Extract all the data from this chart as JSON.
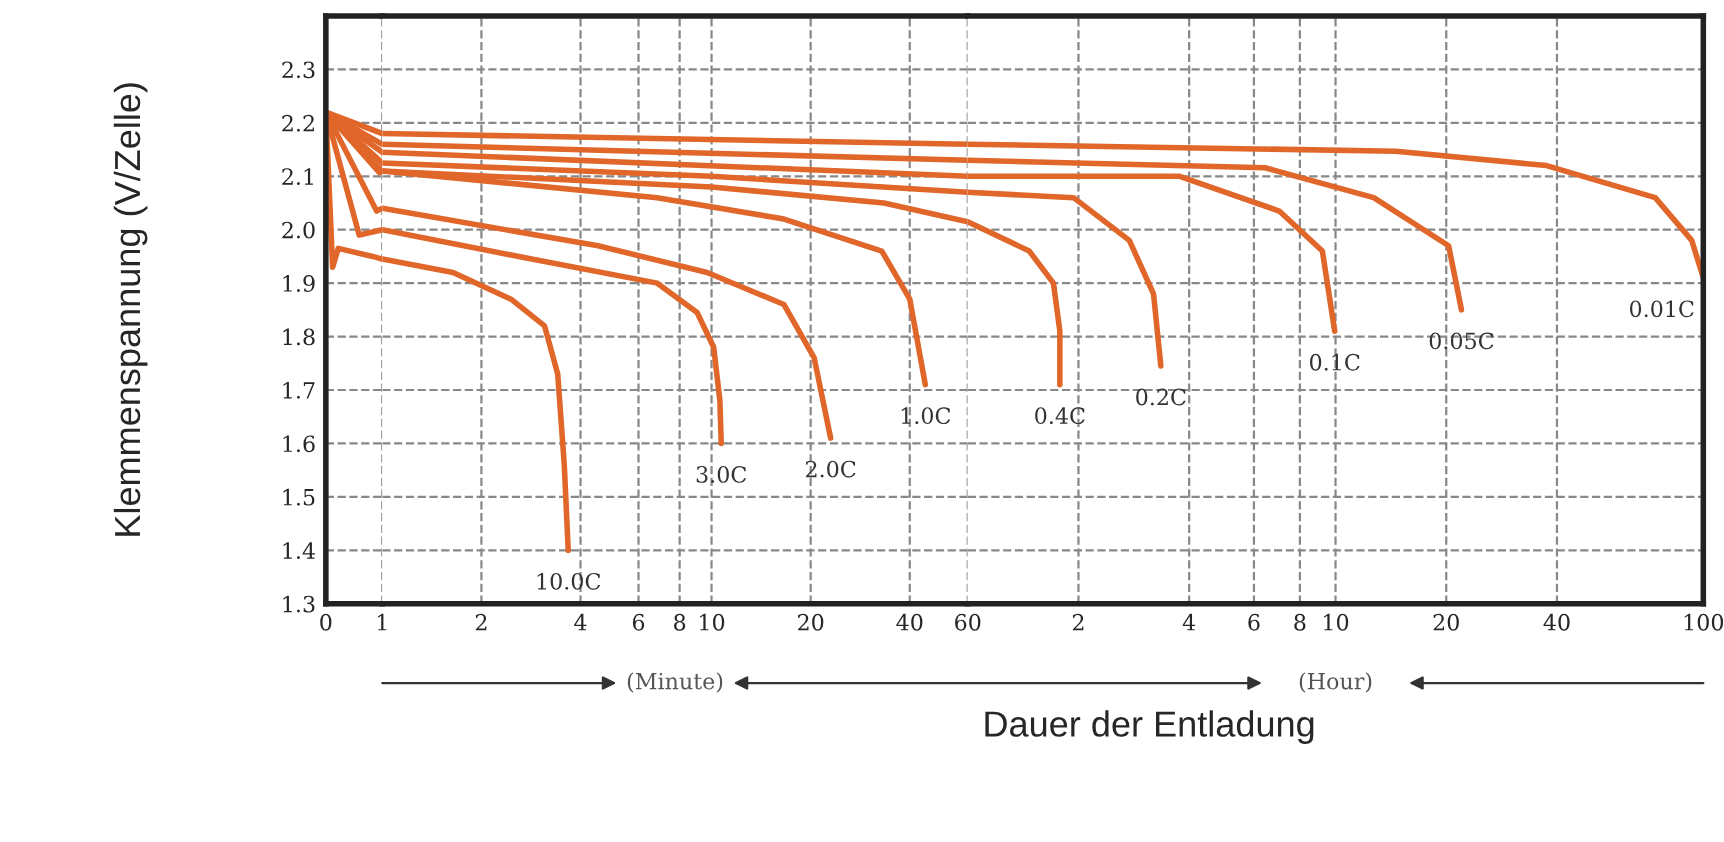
{
  "chart_data": [
    {
      "type": "line",
      "ylabel": "Klemmenspannung (V/Zelle)",
      "xlim": [
        0,
        1
      ],
      "ylim": [
        1.3,
        2.4
      ],
      "xticks": [
        0,
        1
      ],
      "yticks": [
        1.3,
        1.4,
        1.5,
        1.6,
        1.7,
        1.8,
        1.9,
        {
          "value": 2.0,
          "label": "2.0"
        },
        2.1,
        2.2,
        2.3
      ],
      "grid": true,
      "line_style": "solid",
      "series": [
        {
          "color": "#e0662a",
          "x": [
            0,
            0.12,
            0.22,
            0.83,
            1
          ],
          "values": [
            2.22,
            1.93,
            1.965,
            1.95,
            1.945
          ]
        },
        {
          "color": "#e0662a",
          "x": [
            0,
            0.59,
            1
          ],
          "values": [
            2.22,
            1.99,
            2.0
          ]
        },
        {
          "color": "#e0662a",
          "x": [
            0,
            0.9,
            1
          ],
          "values": [
            2.22,
            2.035,
            2.04
          ]
        },
        {
          "color": "#e0662a",
          "x": [
            0,
            0.95,
            1
          ],
          "values": [
            2.22,
            2.107,
            2.11
          ]
        },
        {
          "color": "#e0662a",
          "x": [
            0,
            1
          ],
          "values": [
            2.22,
            2.11
          ]
        },
        {
          "color": "#e0662a",
          "x": [
            0,
            1
          ],
          "values": [
            2.22,
            2.125
          ]
        },
        {
          "color": "#e0662a",
          "x": [
            0,
            1
          ],
          "values": [
            2.22,
            2.145
          ]
        },
        {
          "color": "#e0662a",
          "x": [
            0,
            1
          ],
          "values": [
            2.22,
            2.16
          ]
        },
        {
          "color": "#e0662a",
          "x": [
            0,
            1
          ],
          "values": [
            2.22,
            2.18
          ]
        }
      ]
    },
    {
      "type": "line",
      "log": "x",
      "xlim": [
        1,
        60
      ],
      "ylim": [
        1.3,
        2.4
      ],
      "xticks": [
        2,
        4,
        6,
        8,
        10,
        20,
        40,
        60
      ],
      "yticks": [
        1.3,
        1.4,
        1.5,
        1.6,
        1.7,
        1.8,
        1.9,
        2.0,
        2.1,
        2.2,
        2.3
      ],
      "tick_labels": "x",
      "grid": true,
      "line_style": "solid",
      "annotations": [
        "(Minute)"
      ],
      "series": [
        {
          "name": "10.0C",
          "color": "#e0662a",
          "x": [
            1,
            1.64,
            2.46,
            3.11,
            3.41,
            3.57,
            3.67
          ],
          "values": [
            1.945,
            1.92,
            1.87,
            1.82,
            1.73,
            1.56,
            1.4
          ]
        },
        {
          "name": "3.0C",
          "color": "#e0662a",
          "x": [
            1,
            2.79,
            6.84,
            9.04,
            10.15,
            10.6,
            10.7
          ],
          "values": [
            2.0,
            1.946,
            1.9,
            1.845,
            1.78,
            1.68,
            1.6
          ]
        },
        {
          "name": "2.0C",
          "color": "#e0662a",
          "x": [
            1,
            4.52,
            9.7,
            16.6,
            20.5,
            23.0
          ],
          "values": [
            2.04,
            1.97,
            1.92,
            1.86,
            1.76,
            1.61
          ]
        },
        {
          "name": "1.0C",
          "color": "#e0662a",
          "x": [
            1,
            6.84,
            16.6,
            32.9,
            40,
            44.6
          ],
          "values": [
            2.11,
            2.06,
            2.02,
            1.96,
            1.87,
            1.71
          ]
        },
        {
          "color": "#e0662a",
          "x": [
            1,
            10,
            33.4,
            60
          ],
          "values": [
            2.11,
            2.08,
            2.05,
            2.015
          ]
        },
        {
          "color": "#e0662a",
          "x": [
            1,
            10,
            60
          ],
          "values": [
            2.125,
            2.1,
            2.07
          ]
        },
        {
          "color": "#e0662a",
          "x": [
            1,
            60
          ],
          "values": [
            2.145,
            2.1
          ]
        },
        {
          "color": "#e0662a",
          "x": [
            1,
            60
          ],
          "values": [
            2.16,
            2.13
          ]
        },
        {
          "color": "#e0662a",
          "x": [
            1,
            60
          ],
          "values": [
            2.18,
            2.16
          ]
        }
      ]
    },
    {
      "type": "line",
      "log": "x",
      "xlim": [
        1,
        100
      ],
      "ylim": [
        1.3,
        2.4
      ],
      "xlabel": "Dauer der Entladung",
      "xticks": [
        2,
        4,
        6,
        8,
        10,
        20,
        40,
        100
      ],
      "yticks": [
        1.3,
        1.4,
        1.5,
        1.6,
        1.7,
        1.8,
        1.9,
        2.0,
        2.1,
        2.2,
        2.3
      ],
      "tick_labels": "x",
      "grid": true,
      "line_style": "solid",
      "annotations": [
        "(Hour)"
      ],
      "series": [
        {
          "name": "0.4C",
          "color": "#e0662a",
          "x": [
            1,
            1.47,
            1.71,
            1.78,
            1.78
          ],
          "values": [
            2.015,
            1.96,
            1.9,
            1.81,
            1.71
          ]
        },
        {
          "name": "0.2C",
          "color": "#e0662a",
          "x": [
            1,
            1.94,
            2.75,
            3.2,
            3.35
          ],
          "values": [
            2.07,
            2.06,
            1.98,
            1.88,
            1.745
          ]
        },
        {
          "name": "0.1C",
          "color": "#e0662a",
          "x": [
            1,
            3.77,
            7.03,
            9.21,
            9.95
          ],
          "values": [
            2.1,
            2.1,
            2.035,
            1.96,
            1.81
          ]
        },
        {
          "name": "0.05C",
          "color": "#e0662a",
          "x": [
            1,
            6.43,
            12.7,
            20.3,
            22.0
          ],
          "values": [
            2.13,
            2.116,
            2.06,
            1.97,
            1.85
          ]
        },
        {
          "name": "0.01C",
          "color": "#e0662a",
          "x": [
            1,
            14.6,
            37.5,
            74,
            93,
            100
          ],
          "values": [
            2.16,
            2.147,
            2.12,
            2.06,
            1.98,
            1.91
          ]
        }
      ]
    }
  ]
}
